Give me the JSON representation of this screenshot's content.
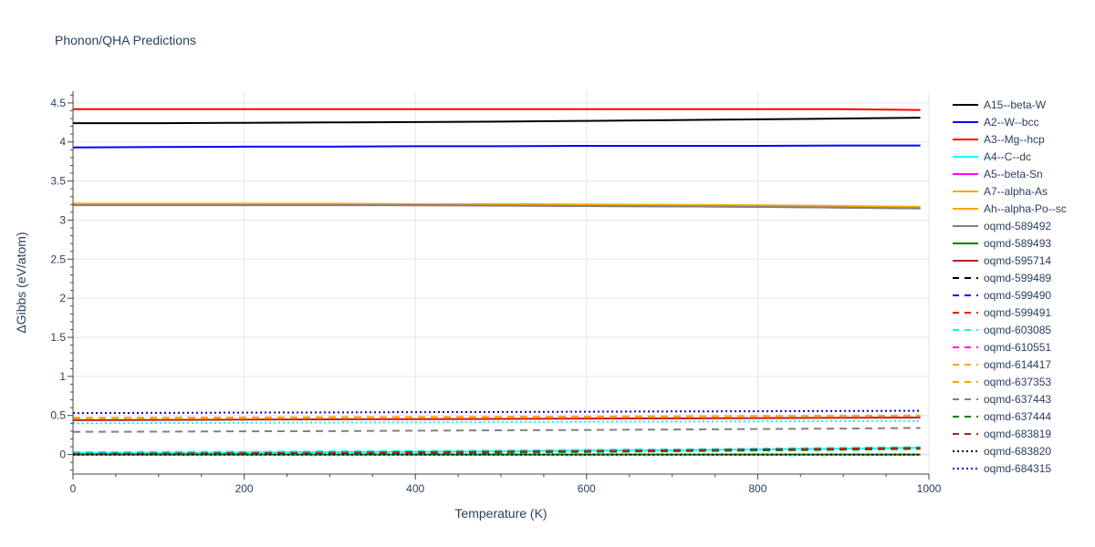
{
  "title": "Phonon/QHA Predictions",
  "chart_data": {
    "type": "line",
    "title": "Phonon/QHA Predictions",
    "xlabel": "Temperature (K)",
    "ylabel": "ΔGibbs (eV/atom)",
    "xlim": [
      0,
      1000
    ],
    "ylim": [
      -0.25,
      4.65
    ],
    "x_ticks": [
      0,
      200,
      400,
      600,
      800,
      1000
    ],
    "y_ticks": [
      0,
      0.5,
      1,
      1.5,
      2,
      2.5,
      3,
      3.5,
      4,
      4.5
    ],
    "grid": true,
    "legend_position": "right",
    "x": [
      0,
      100,
      200,
      300,
      400,
      500,
      600,
      700,
      800,
      900,
      990
    ],
    "series": [
      {
        "name": "A15--beta-W",
        "color": "#000000",
        "dash": "solid",
        "values": [
          4.24,
          4.24,
          4.245,
          4.25,
          4.255,
          4.26,
          4.27,
          4.28,
          4.29,
          4.3,
          4.31
        ]
      },
      {
        "name": "A2--W--bcc",
        "color": "#0000ff",
        "dash": "solid",
        "values": [
          3.93,
          3.935,
          3.94,
          3.94,
          3.945,
          3.945,
          3.95,
          3.95,
          3.95,
          3.955,
          3.955
        ]
      },
      {
        "name": "A3--Mg--hcp",
        "color": "#ff0000",
        "dash": "solid",
        "values": [
          4.42,
          4.42,
          4.42,
          4.42,
          4.42,
          4.42,
          4.42,
          4.42,
          4.42,
          4.42,
          4.41
        ]
      },
      {
        "name": "A4--C--dc",
        "color": "#00ffff",
        "dash": "solid",
        "values": [
          0.02,
          0.022,
          0.025,
          0.03,
          0.035,
          0.04,
          0.05,
          0.055,
          0.065,
          0.075,
          0.085
        ]
      },
      {
        "name": "A5--beta-Sn",
        "color": "#ff00ff",
        "dash": "solid",
        "values": [
          3.2,
          3.2,
          3.2,
          3.195,
          3.19,
          3.19,
          3.18,
          3.175,
          3.17,
          3.16,
          3.15
        ]
      },
      {
        "name": "A7--alpha-As",
        "color": "#ffa500",
        "dash": "solid",
        "values": [
          3.21,
          3.21,
          3.21,
          3.21,
          3.205,
          3.205,
          3.2,
          3.195,
          3.19,
          3.18,
          3.17
        ]
      },
      {
        "name": "Ah--alpha-Po--sc",
        "color": "#ffa500",
        "dash": "solid",
        "values": [
          3.2,
          3.2,
          3.2,
          3.2,
          3.2,
          3.195,
          3.19,
          3.185,
          3.18,
          3.17,
          3.16
        ]
      },
      {
        "name": "oqmd-589492",
        "color": "#808080",
        "dash": "solid",
        "values": [
          3.19,
          3.19,
          3.19,
          3.19,
          3.19,
          3.185,
          3.18,
          3.175,
          3.17,
          3.16,
          3.15
        ]
      },
      {
        "name": "oqmd-589493",
        "color": "#008000",
        "dash": "solid",
        "values": [
          0.0,
          0.0,
          0.0,
          0.0,
          0.0,
          0.0,
          0.0,
          0.0,
          0.0,
          0.0,
          0.0
        ]
      },
      {
        "name": "oqmd-595714",
        "color": "#b22222",
        "dash": "solid",
        "values": [
          0.44,
          0.443,
          0.446,
          0.45,
          0.453,
          0.456,
          0.46,
          0.463,
          0.466,
          0.47,
          0.473
        ]
      },
      {
        "name": "oqmd-599489",
        "color": "#000000",
        "dash": "dash",
        "values": [
          0.0,
          0.005,
          0.01,
          0.015,
          0.02,
          0.03,
          0.04,
          0.05,
          0.06,
          0.07,
          0.08
        ]
      },
      {
        "name": "oqmd-599490",
        "color": "#0000ff",
        "dash": "dash",
        "values": [
          0.02,
          0.022,
          0.025,
          0.03,
          0.035,
          0.04,
          0.05,
          0.055,
          0.065,
          0.075,
          0.085
        ]
      },
      {
        "name": "oqmd-599491",
        "color": "#ff0000",
        "dash": "dash",
        "values": [
          0.45,
          0.453,
          0.456,
          0.46,
          0.463,
          0.466,
          0.47,
          0.473,
          0.476,
          0.48,
          0.483
        ]
      },
      {
        "name": "oqmd-603085",
        "color": "#00ffff",
        "dash": "dash",
        "values": [
          0.03,
          0.033,
          0.036,
          0.04,
          0.045,
          0.05,
          0.06,
          0.065,
          0.075,
          0.085,
          0.095
        ]
      },
      {
        "name": "oqmd-610551",
        "color": "#ff00ff",
        "dash": "dash",
        "values": [
          0.46,
          0.462,
          0.465,
          0.468,
          0.47,
          0.473,
          0.476,
          0.48,
          0.483,
          0.486,
          0.49
        ]
      },
      {
        "name": "oqmd-614417",
        "color": "#ffa500",
        "dash": "dash",
        "values": [
          0.46,
          0.463,
          0.466,
          0.47,
          0.473,
          0.476,
          0.48,
          0.483,
          0.486,
          0.49,
          0.495
        ]
      },
      {
        "name": "oqmd-637353",
        "color": "#ffa500",
        "dash": "dash",
        "values": [
          0.47,
          0.472,
          0.475,
          0.478,
          0.48,
          0.483,
          0.486,
          0.49,
          0.493,
          0.496,
          0.5
        ]
      },
      {
        "name": "oqmd-637443",
        "color": "#808080",
        "dash": "dash",
        "values": [
          0.29,
          0.293,
          0.297,
          0.3,
          0.305,
          0.31,
          0.315,
          0.32,
          0.326,
          0.332,
          0.34
        ]
      },
      {
        "name": "oqmd-637444",
        "color": "#008000",
        "dash": "dash",
        "values": [
          0.0,
          0.004,
          0.008,
          0.012,
          0.018,
          0.025,
          0.033,
          0.042,
          0.052,
          0.062,
          0.072
        ]
      },
      {
        "name": "oqmd-683819",
        "color": "#b22222",
        "dash": "dash",
        "values": [
          0.01,
          0.014,
          0.018,
          0.023,
          0.03,
          0.037,
          0.045,
          0.055,
          0.065,
          0.075,
          0.085
        ]
      },
      {
        "name": "oqmd-683820",
        "color": "#000000",
        "dash": "dot",
        "values": [
          0.0,
          0.0,
          0.0,
          0.0,
          0.0,
          0.0,
          0.0,
          0.0,
          0.0,
          0.0,
          0.0
        ]
      },
      {
        "name": "oqmd-684315",
        "color": "#0000ff",
        "dash": "dot",
        "values": [
          0.53,
          0.533,
          0.536,
          0.539,
          0.542,
          0.545,
          0.548,
          0.551,
          0.554,
          0.557,
          0.56
        ]
      },
      {
        "name": "",
        "color": "#00ffff",
        "dash": "dot",
        "values": [
          0.4,
          0.403,
          0.406,
          0.409,
          0.412,
          0.415,
          0.418,
          0.421,
          0.424,
          0.427,
          0.43
        ]
      }
    ]
  }
}
